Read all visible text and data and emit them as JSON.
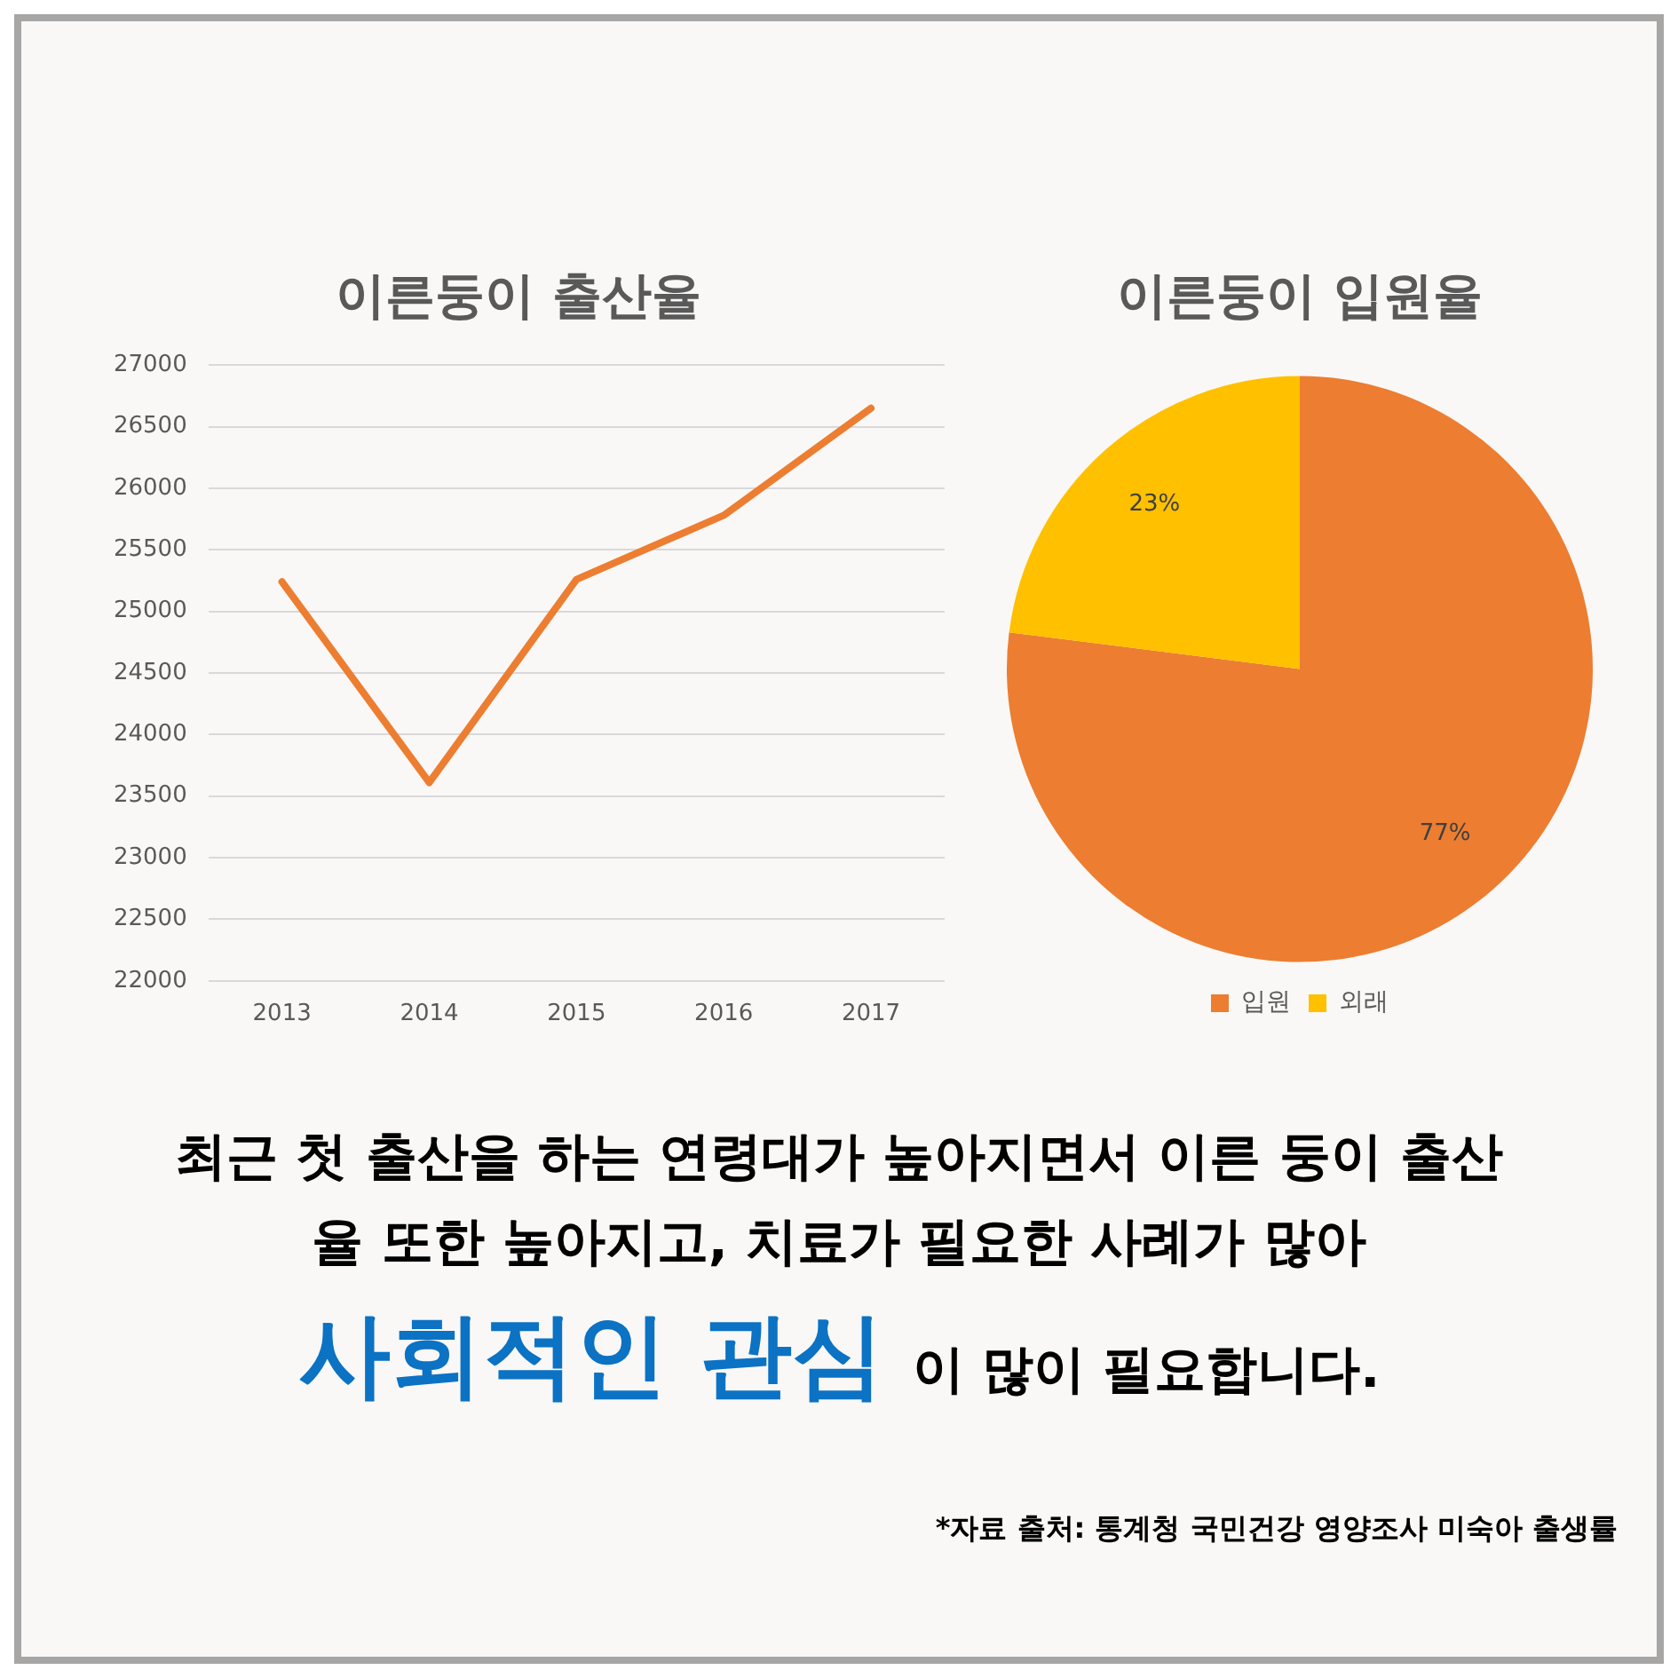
{
  "chart_data": [
    {
      "type": "line",
      "title": "이른둥이 출산율",
      "categories": [
        "2013",
        "2014",
        "2015",
        "2016",
        "2017"
      ],
      "values": [
        25240,
        23610,
        25260,
        25780,
        26650
      ],
      "color": "#ed7d31",
      "ylim": [
        22000,
        27000
      ],
      "yticks": [
        22000,
        22500,
        23000,
        23500,
        24000,
        24500,
        25000,
        25500,
        26000,
        26500,
        27000
      ],
      "grid": "y",
      "legend": false,
      "marker": "none"
    },
    {
      "type": "pie",
      "title": "이른둥이 입원율",
      "categories": [
        "입원",
        "외래"
      ],
      "values": [
        77,
        23
      ],
      "colors": [
        "#ed7d31",
        "#ffc000"
      ],
      "value_labels": [
        "77%",
        "23%"
      ],
      "legend": "bottom"
    },
    {
      "type": "other",
      "annotations": [
        "최근 첫 출산을 하는 연령대가 높아지면서 이른 둥이 출산율 또한 높아지고, 치료가 필요한 사례가 많아",
        "사회적인 관심",
        "이 많이 필요합니다.",
        "*자료 출처:  통계청 국민건강 영양조사 미숙아 출생률"
      ]
    }
  ]
}
